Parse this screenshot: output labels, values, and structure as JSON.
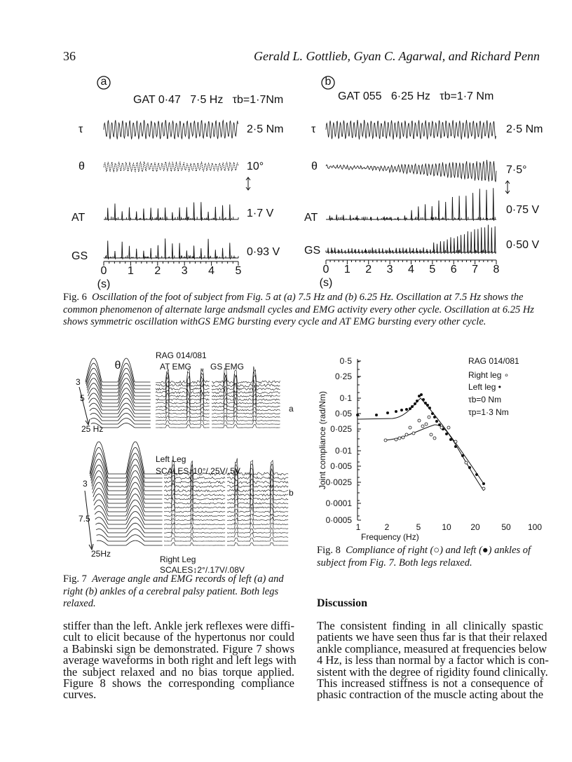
{
  "header": {
    "page_number": "36",
    "authors": "Gerald L. Gottlieb, Gyan C. Agarwal, and Richard Penn"
  },
  "figure6": {
    "panel_a": {
      "label": "a",
      "title": "GAT 0·47   7·5 Hz   τb=1·7Nm",
      "row_labels": [
        "τ",
        "θ",
        "AT",
        "GS"
      ],
      "scales": [
        "2·5 Nm",
        "10°",
        "1·7 V",
        "0·93 V"
      ],
      "time_ticks": [
        "0",
        "1",
        "2",
        "3",
        "4",
        "5"
      ],
      "time_unit": "(s)"
    },
    "panel_b": {
      "label": "b",
      "title": "GAT 055   6·25 Hz   τb=1·7 Nm",
      "row_labels": [
        "τ",
        "θ",
        "AT",
        "GS"
      ],
      "scales": [
        "2·5 Nm",
        "7·5°",
        "0·75 V",
        "0·50 V"
      ],
      "time_ticks": [
        "0",
        "1",
        "2",
        "3",
        "4",
        "5",
        "6",
        "7",
        "8"
      ],
      "time_unit": "(s)"
    },
    "caption_label": "Fig. 6",
    "caption": "Oscillation of the foot of subject from Fig. 5   at (a) 7.5 Hz and (b) 6.25 Hz. Oscillation at 7.5 Hz shows the common phenomenon of alternate large andsmall cycles and EMG activity every other cycle. Oscillation at 6.25 Hz shows symmetric oscillation withGS EMG bursting every cycle and AT EMG bursting every other cycle."
  },
  "figure7": {
    "heading": "RAG 014/081",
    "column_labels": [
      "θ",
      "AT EMG",
      "GS EMG"
    ],
    "panel_a": {
      "label": "a",
      "freq_labels": [
        "3",
        "5",
        "25 Hz"
      ],
      "leg": "Left Leg",
      "scales": "SCALES↕10°/.25V/.5V"
    },
    "panel_b": {
      "label": "b",
      "freq_labels": [
        "3",
        "7.5",
        "25Hz"
      ],
      "leg": "Right Leg",
      "scales": "SCALES↕2°/.17V/.08V"
    },
    "caption_label": "Fig. 7",
    "caption": "Average angle and EMG records of left (a) and right (b) ankles of a cerebral palsy patient. Both legs relaxed."
  },
  "figure8": {
    "y_axis_label": "Joint compliance (rad/Nm)",
    "y_ticks": [
      "0·5",
      "0·25",
      "0·1",
      "0·05",
      "0·025",
      "0·01",
      "0·005",
      "0·0025",
      "0·0001",
      "0·0005"
    ],
    "x_axis_label": "Frequency (Hz)",
    "x_ticks": [
      "1",
      "2",
      "5",
      "10",
      "20",
      "50",
      "100"
    ],
    "legend": [
      "RAG 014/081",
      "Right leg ∘",
      "Left leg •",
      "τb=0 Nm",
      "τp=1·3 Nm"
    ],
    "caption_label": "Fig. 8",
    "caption": "Compliance of right (○) and left (●) ankles of subject from Fig. 7. Both legs relaxed."
  },
  "section_heading": "Discussion",
  "body_left": [
    "stiffer than the left. Ankle jerk reflexes were diffi-",
    "cult to elicit because of the hypertonus nor could",
    "a Babinski sign be demonstrated. Figure 7 shows",
    "average waveforms in both right and left legs with",
    "the subject relaxed and no bias torque applied.",
    "Figure 8 shows the corresponding compliance",
    "curves."
  ],
  "body_right": [
    "The consistent finding in all clinically spastic",
    "patients we have seen thus far is that their relaxed",
    "ankle compliance, measured at frequencies below",
    "4 Hz, is less than normal by a factor which is con-",
    "sistent with the degree of rigidity found clinically.",
    "This increased stiffness is not a consequence of",
    "phasic contraction of the muscle acting about the"
  ]
}
